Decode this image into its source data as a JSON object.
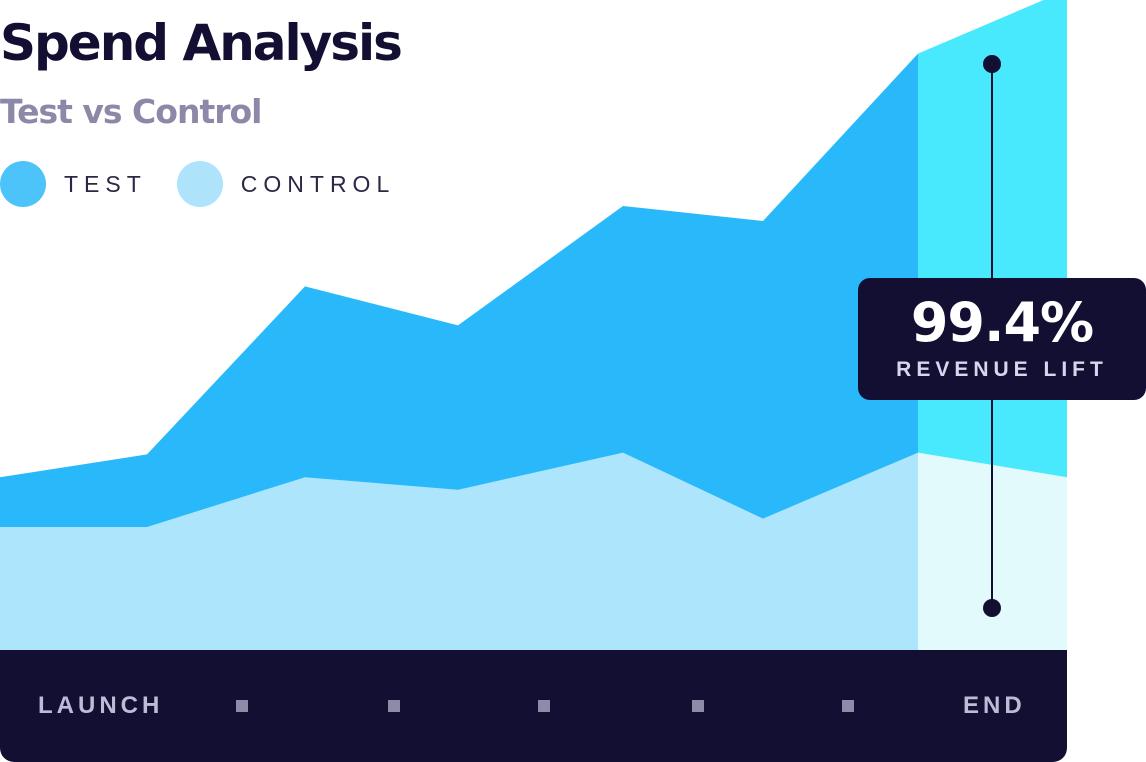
{
  "header": {
    "title": "Spend Analysis",
    "subtitle": "Test vs Control"
  },
  "legend": [
    {
      "label": "TEST",
      "color": "#4cc3f9"
    },
    {
      "label": "CONTROL",
      "color": "#aee3fc"
    }
  ],
  "callout": {
    "value": "99.4%",
    "label": "REVENUE LIFT"
  },
  "x_axis": {
    "start_label": "LAUNCH",
    "end_label": "END"
  },
  "colors": {
    "test": "#29b9fb",
    "control": "#ade5fd",
    "test_highlight": "#48e8fd",
    "control_highlight": "#e3fafd",
    "dark": "#120f33"
  },
  "chart_data": {
    "type": "area",
    "title": "Spend Analysis",
    "subtitle": "Test vs Control",
    "x_labels": [
      "LAUNCH",
      "END"
    ],
    "x": [
      0,
      1,
      2,
      3,
      4,
      5,
      6,
      7
    ],
    "ylim": [
      0,
      100
    ],
    "highlight_from_x": 6,
    "series": [
      {
        "name": "TEST",
        "values": [
          28.8,
          32.6,
          60.6,
          54.1,
          74.0,
          71.5,
          99.4,
          110.0
        ]
      },
      {
        "name": "CONTROL",
        "values": [
          20.5,
          20.5,
          28.8,
          26.7,
          32.9,
          21.9,
          32.9,
          28.8
        ]
      }
    ],
    "annotations": [
      {
        "label": "REVENUE LIFT",
        "value": "99.4%"
      }
    ],
    "legend": "top-left",
    "grid": false
  }
}
